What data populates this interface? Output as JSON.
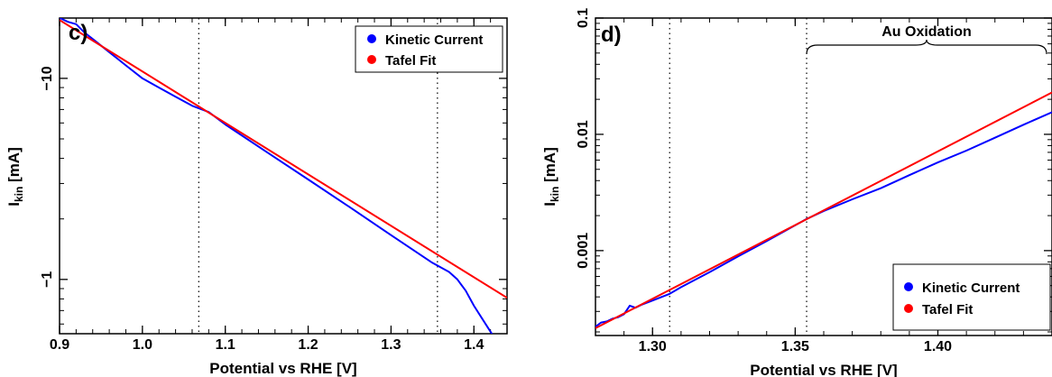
{
  "chart_data": [
    {
      "panel": "c)",
      "type": "line",
      "xlabel": "Potential vs RHE [V]",
      "ylabel_main": "I",
      "ylabel_sub": "kin",
      "ylabel_unit": " [mA]",
      "xlim": [
        0.9,
        1.44
      ],
      "ylim_abs_log10": [
        -0.27,
        1.3
      ],
      "y_scale": "log (magnitude, negative current)",
      "x_ticks": [
        {
          "value": 0.9,
          "label": "0.9"
        },
        {
          "value": 1.0,
          "label": "1.0"
        },
        {
          "value": 1.1,
          "label": "1.1"
        },
        {
          "value": 1.2,
          "label": "1.2"
        },
        {
          "value": 1.3,
          "label": "1.3"
        },
        {
          "value": 1.4,
          "label": "1.4"
        }
      ],
      "y_ticks": [
        {
          "log10": 1,
          "label": "−10"
        },
        {
          "log10": 0,
          "label": "−1"
        }
      ],
      "vlines": [
        1.068,
        1.356
      ],
      "legend": {
        "placement": "top-right",
        "entries": [
          {
            "label": "Kinetic Current",
            "color": "#0000ff"
          },
          {
            "label": "Tafel Fit",
            "color": "#ff0000"
          }
        ]
      },
      "series": [
        {
          "name": "Kinetic Current",
          "color": "#0000ff",
          "x": [
            0.9,
            0.91,
            0.92,
            0.93,
            0.94,
            0.96,
            0.98,
            1.0,
            1.02,
            1.04,
            1.06,
            1.08,
            1.1,
            1.15,
            1.2,
            1.25,
            1.3,
            1.35,
            1.37,
            1.38,
            1.39,
            1.4,
            1.42,
            1.44
          ],
          "y": [
            -20.0,
            -19.1,
            -18.6,
            -16.9,
            -15.7,
            -13.5,
            -11.6,
            -10.0,
            -9.0,
            -8.1,
            -7.3,
            -6.8,
            -5.9,
            -4.3,
            -3.14,
            -2.29,
            -1.66,
            -1.21,
            -1.09,
            -1.0,
            -0.88,
            -0.74,
            -0.55,
            -0.41
          ]
        },
        {
          "name": "Tafel Fit",
          "color": "#ff0000",
          "x": [
            0.9,
            1.44
          ],
          "y": [
            -19.5,
            -0.81
          ]
        }
      ]
    },
    {
      "panel": "d)",
      "type": "line",
      "xlabel": "Potential vs RHE [V]",
      "ylabel_main": "I",
      "ylabel_sub": "kin",
      "ylabel_unit": " [mA]",
      "xlim": [
        1.28,
        1.44
      ],
      "ylim_log10": [
        -3.73,
        -1.0
      ],
      "y_scale": "log",
      "x_ticks": [
        {
          "value": 1.3,
          "label": "1.30"
        },
        {
          "value": 1.35,
          "label": "1.35"
        },
        {
          "value": 1.4,
          "label": "1.40"
        }
      ],
      "y_ticks": [
        {
          "log10": -1,
          "label": "0.1"
        },
        {
          "log10": -2,
          "label": "0.01"
        },
        {
          "log10": -3,
          "label": "0.001"
        }
      ],
      "vlines": [
        1.306,
        1.354
      ],
      "annotation": {
        "text": "Au Oxidation",
        "x_from": 1.354,
        "x_to": 1.44
      },
      "legend": {
        "placement": "bottom-right",
        "entries": [
          {
            "label": "Kinetic Current",
            "color": "#0000ff"
          },
          {
            "label": "Tafel Fit",
            "color": "#ff0000"
          }
        ]
      },
      "series": [
        {
          "name": "Kinetic Current",
          "color": "#0000ff",
          "x": [
            1.28,
            1.282,
            1.284,
            1.286,
            1.288,
            1.29,
            1.292,
            1.294,
            1.296,
            1.3,
            1.306,
            1.31,
            1.32,
            1.33,
            1.34,
            1.354,
            1.36,
            1.37,
            1.38,
            1.39,
            1.4,
            1.41,
            1.42,
            1.43,
            1.44
          ],
          "y": [
            0.000222,
            0.000241,
            0.000246,
            0.00026,
            0.000268,
            0.000284,
            0.000336,
            0.000323,
            0.000341,
            0.000372,
            0.000425,
            0.000485,
            0.000653,
            0.000891,
            0.00121,
            0.00187,
            0.00219,
            0.00276,
            0.00344,
            0.00446,
            0.00573,
            0.00724,
            0.00935,
            0.0121,
            0.0155
          ]
        },
        {
          "name": "Tafel Fit",
          "color": "#ff0000",
          "x": [
            1.28,
            1.44
          ],
          "y": [
            0.000215,
            0.0229
          ]
        }
      ]
    }
  ]
}
